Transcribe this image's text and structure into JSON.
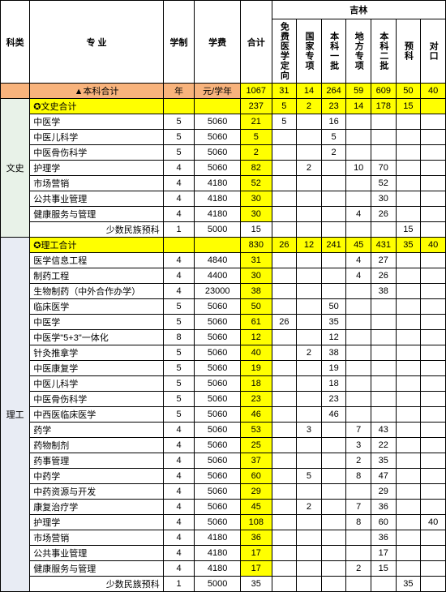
{
  "headers": {
    "category": "科类",
    "major": "专 业",
    "years": "学制",
    "fee": "学费",
    "total": "合计",
    "province": "吉林",
    "sub": [
      "免费医学定向",
      "国家专项",
      "本科一批",
      "地方专项",
      "本科二批",
      "预科",
      "对口"
    ]
  },
  "sumRow": {
    "major": "▲本科合计",
    "years": "年",
    "fee": "元/学年",
    "total": "1067",
    "n": [
      "31",
      "14",
      "264",
      "59",
      "609",
      "50",
      "40"
    ]
  },
  "groups": [
    {
      "cat": "文史",
      "catClass": "cat-ws",
      "rows": [
        {
          "hl": true,
          "major": "✪文史合计",
          "years": "",
          "fee": "",
          "total": "237",
          "n": [
            "5",
            "2",
            "23",
            "14",
            "178",
            "15",
            ""
          ]
        },
        {
          "major": "中医学",
          "years": "5",
          "fee": "5060",
          "total": "21",
          "hlTot": true,
          "n": [
            "5",
            "",
            "16",
            "",
            "",
            "",
            ""
          ]
        },
        {
          "major": "中医儿科学",
          "years": "5",
          "fee": "5060",
          "total": "5",
          "hlTot": true,
          "n": [
            "",
            "",
            "5",
            "",
            "",
            "",
            ""
          ]
        },
        {
          "major": "中医骨伤科学",
          "years": "5",
          "fee": "5060",
          "total": "2",
          "hlTot": true,
          "n": [
            "",
            "",
            "2",
            "",
            "",
            "",
            ""
          ]
        },
        {
          "major": "护理学",
          "years": "4",
          "fee": "5060",
          "total": "82",
          "hlTot": true,
          "n": [
            "",
            "2",
            "",
            "10",
            "70",
            "",
            ""
          ]
        },
        {
          "major": "市场营销",
          "years": "4",
          "fee": "4180",
          "total": "52",
          "hlTot": true,
          "n": [
            "",
            "",
            "",
            "",
            "52",
            "",
            ""
          ]
        },
        {
          "major": "公共事业管理",
          "years": "4",
          "fee": "4180",
          "total": "30",
          "hlTot": true,
          "n": [
            "",
            "",
            "",
            "",
            "30",
            "",
            ""
          ]
        },
        {
          "major": "健康服务与管理",
          "years": "4",
          "fee": "4180",
          "total": "30",
          "hlTot": true,
          "n": [
            "",
            "",
            "",
            "4",
            "26",
            "",
            ""
          ]
        },
        {
          "major": "少数民族预科",
          "years": "1",
          "fee": "5000",
          "total": "15",
          "n": [
            "",
            "",
            "",
            "",
            "",
            "15",
            ""
          ],
          "right": true
        }
      ]
    },
    {
      "cat": "理工",
      "catClass": "cat-lg",
      "rows": [
        {
          "hl": true,
          "major": "✪理工合计",
          "years": "",
          "fee": "",
          "total": "830",
          "n": [
            "26",
            "12",
            "241",
            "45",
            "431",
            "35",
            "40"
          ]
        },
        {
          "major": "医学信息工程",
          "years": "4",
          "fee": "4840",
          "total": "31",
          "hlTot": true,
          "n": [
            "",
            "",
            "",
            "4",
            "27",
            "",
            ""
          ]
        },
        {
          "major": "制药工程",
          "years": "4",
          "fee": "4400",
          "total": "30",
          "hlTot": true,
          "n": [
            "",
            "",
            "",
            "4",
            "26",
            "",
            ""
          ]
        },
        {
          "major": "生物制药（中外合作办学）",
          "years": "4",
          "fee": "23000",
          "total": "38",
          "hlTot": true,
          "n": [
            "",
            "",
            "",
            "",
            "38",
            "",
            ""
          ]
        },
        {
          "major": "临床医学",
          "years": "5",
          "fee": "5060",
          "total": "50",
          "hlTot": true,
          "n": [
            "",
            "",
            "50",
            "",
            "",
            "",
            ""
          ]
        },
        {
          "major": "中医学",
          "years": "5",
          "fee": "5060",
          "total": "61",
          "hlTot": true,
          "n": [
            "26",
            "",
            "35",
            "",
            "",
            "",
            ""
          ]
        },
        {
          "major": "中医学\"5+3\"一体化",
          "years": "8",
          "fee": "5060",
          "total": "12",
          "hlTot": true,
          "n": [
            "",
            "",
            "12",
            "",
            "",
            "",
            ""
          ]
        },
        {
          "major": "针灸推拿学",
          "years": "5",
          "fee": "5060",
          "total": "40",
          "hlTot": true,
          "n": [
            "",
            "2",
            "38",
            "",
            "",
            "",
            ""
          ]
        },
        {
          "major": "中医康复学",
          "years": "5",
          "fee": "5060",
          "total": "19",
          "hlTot": true,
          "n": [
            "",
            "",
            "19",
            "",
            "",
            "",
            ""
          ]
        },
        {
          "major": "中医儿科学",
          "years": "5",
          "fee": "5060",
          "total": "18",
          "hlTot": true,
          "n": [
            "",
            "",
            "18",
            "",
            "",
            "",
            ""
          ]
        },
        {
          "major": "中医骨伤科学",
          "years": "5",
          "fee": "5060",
          "total": "23",
          "hlTot": true,
          "n": [
            "",
            "",
            "23",
            "",
            "",
            "",
            ""
          ]
        },
        {
          "major": "中西医临床医学",
          "years": "5",
          "fee": "5060",
          "total": "46",
          "hlTot": true,
          "n": [
            "",
            "",
            "46",
            "",
            "",
            "",
            ""
          ]
        },
        {
          "major": "药学",
          "years": "4",
          "fee": "5060",
          "total": "53",
          "hlTot": true,
          "n": [
            "",
            "3",
            "",
            "7",
            "43",
            "",
            ""
          ]
        },
        {
          "major": "药物制剂",
          "years": "4",
          "fee": "5060",
          "total": "25",
          "hlTot": true,
          "n": [
            "",
            "",
            "",
            "3",
            "22",
            "",
            ""
          ]
        },
        {
          "major": "药事管理",
          "years": "4",
          "fee": "5060",
          "total": "37",
          "hlTot": true,
          "n": [
            "",
            "",
            "",
            "2",
            "35",
            "",
            ""
          ]
        },
        {
          "major": "中药学",
          "years": "4",
          "fee": "5060",
          "total": "60",
          "hlTot": true,
          "n": [
            "",
            "5",
            "",
            "8",
            "47",
            "",
            ""
          ]
        },
        {
          "major": "中药资源与开发",
          "years": "4",
          "fee": "5060",
          "total": "29",
          "hlTot": true,
          "n": [
            "",
            "",
            "",
            "",
            "29",
            "",
            ""
          ]
        },
        {
          "major": "康复治疗学",
          "years": "4",
          "fee": "5060",
          "total": "45",
          "hlTot": true,
          "n": [
            "",
            "2",
            "",
            "7",
            "36",
            "",
            ""
          ]
        },
        {
          "major": "护理学",
          "years": "4",
          "fee": "5060",
          "total": "108",
          "hlTot": true,
          "n": [
            "",
            "",
            "",
            "8",
            "60",
            "",
            "40"
          ]
        },
        {
          "major": "市场营销",
          "years": "4",
          "fee": "4180",
          "total": "36",
          "hlTot": true,
          "n": [
            "",
            "",
            "",
            "",
            "36",
            "",
            ""
          ]
        },
        {
          "major": "公共事业管理",
          "years": "4",
          "fee": "4180",
          "total": "17",
          "hlTot": true,
          "n": [
            "",
            "",
            "",
            "",
            "17",
            "",
            ""
          ]
        },
        {
          "major": "健康服务与管理",
          "years": "4",
          "fee": "4180",
          "total": "17",
          "hlTot": true,
          "n": [
            "",
            "",
            "",
            "2",
            "15",
            "",
            ""
          ]
        },
        {
          "major": "少数民族预科",
          "years": "1",
          "fee": "5000",
          "total": "35",
          "n": [
            "",
            "",
            "",
            "",
            "",
            "35",
            ""
          ],
          "right": true
        }
      ]
    }
  ]
}
